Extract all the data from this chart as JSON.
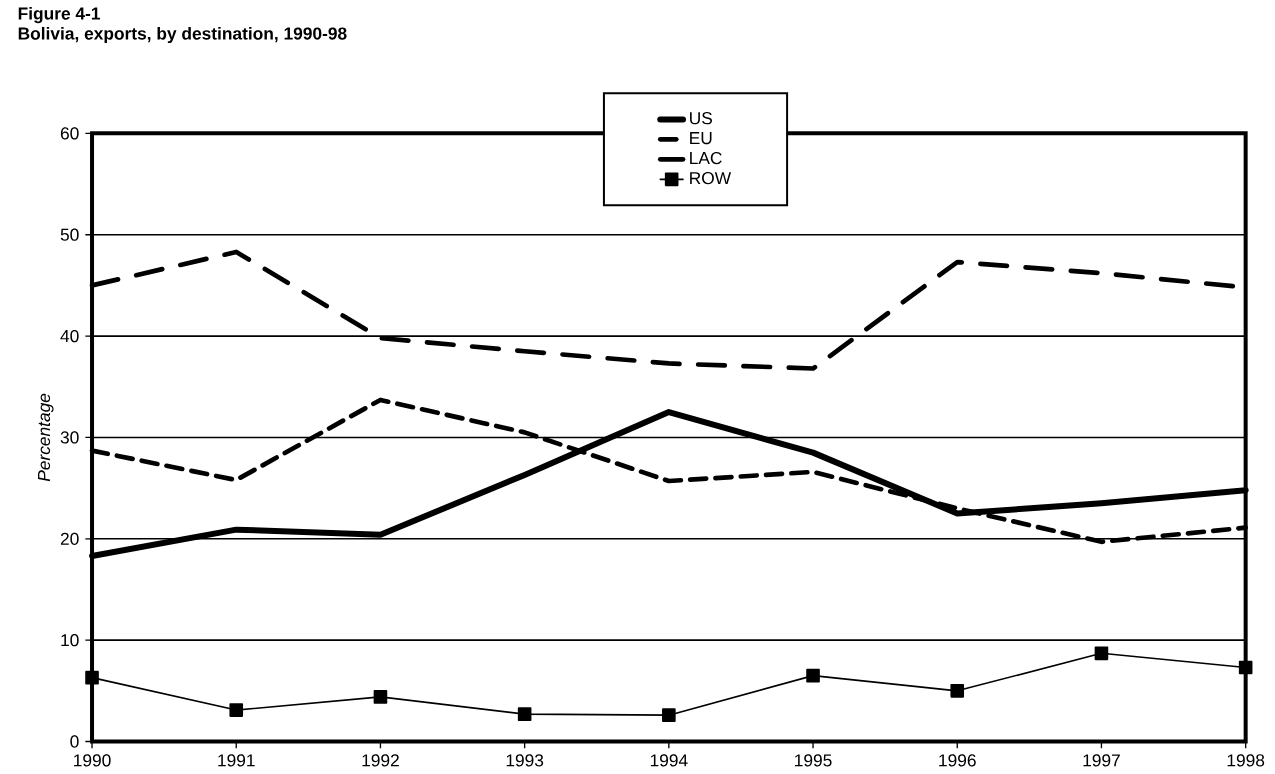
{
  "chart_data": {
    "type": "line",
    "title": "Figure 4-1",
    "subtitle": "Bolivia, exports, by destination, 1990-98",
    "ylabel": "Percentage",
    "x": [
      1990,
      1991,
      1992,
      1993,
      1994,
      1995,
      1996,
      1997,
      1998
    ],
    "xlim": [
      1990,
      1998
    ],
    "xticks": [
      1990,
      1991,
      1992,
      1993,
      1994,
      1995,
      1996,
      1997,
      1998
    ],
    "ylim": [
      0,
      60
    ],
    "yticks": [
      0,
      10,
      20,
      30,
      40,
      50,
      60
    ],
    "grid": "y",
    "legend": "top",
    "series": [
      {
        "name": "US",
        "color": "#000000",
        "line_style": "solid",
        "marker": "none",
        "values": [
          18.3,
          20.9,
          20.4,
          26.3,
          32.5,
          28.5,
          22.5,
          23.5,
          24.8
        ]
      },
      {
        "name": "EU",
        "color": "#000000",
        "line_style": "dashed",
        "marker": "none",
        "values": [
          28.7,
          25.8,
          33.7,
          30.5,
          25.7,
          26.6,
          23.0,
          19.7,
          21.1
        ]
      },
      {
        "name": "LAC",
        "color": "#000000",
        "line_style": "dashed",
        "marker": "none",
        "values": [
          45.0,
          48.3,
          39.8,
          38.5,
          37.3,
          36.8,
          47.3,
          46.2,
          44.8
        ]
      },
      {
        "name": "ROW",
        "color": "#000000",
        "line_style": "solid",
        "marker": "square",
        "values": [
          6.3,
          3.1,
          4.4,
          2.7,
          2.6,
          6.5,
          5.0,
          8.7,
          7.3
        ]
      }
    ]
  }
}
